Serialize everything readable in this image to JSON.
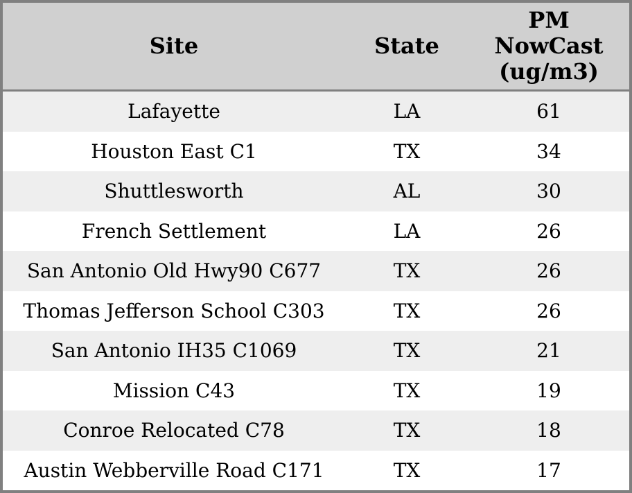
{
  "table": {
    "header": {
      "site": "Site",
      "state": "State",
      "pm_lines": [
        "PM",
        "NowCast",
        "(ug/m3)"
      ]
    },
    "rows": [
      {
        "site": "Lafayette",
        "state": "LA",
        "value": "61"
      },
      {
        "site": "Houston East C1",
        "state": "TX",
        "value": "34"
      },
      {
        "site": "Shuttlesworth",
        "state": "AL",
        "value": "30"
      },
      {
        "site": "French Settlement",
        "state": "LA",
        "value": "26"
      },
      {
        "site": "San Antonio Old Hwy90 C677",
        "state": "TX",
        "value": "26"
      },
      {
        "site": "Thomas Jefferson School C303",
        "state": "TX",
        "value": "26"
      },
      {
        "site": "San Antonio IH35 C1069",
        "state": "TX",
        "value": "21"
      },
      {
        "site": "Mission C43",
        "state": "TX",
        "value": "19"
      },
      {
        "site": "Conroe Relocated C78",
        "state": "TX",
        "value": "18"
      },
      {
        "site": "Austin Webberville Road C171",
        "state": "TX",
        "value": "17"
      }
    ]
  },
  "colors": {
    "header_bg": "#d0d0d0",
    "row_stripe": "#eeeeee",
    "row_plain": "#ffffff",
    "border": "#808080",
    "text": "#000000"
  }
}
